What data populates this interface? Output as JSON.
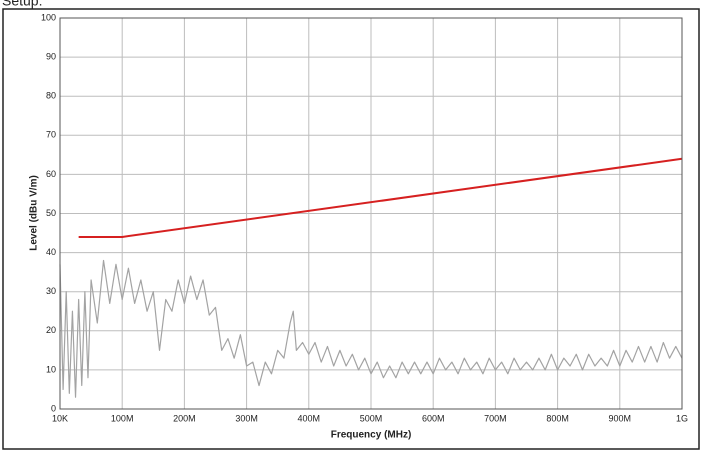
{
  "caption": "Setup:",
  "chart_data": {
    "type": "line",
    "x_label": "Frequency (MHz)",
    "y_label": "Level (dBu V/m)",
    "xlim": [
      0.01,
      1000
    ],
    "ylim": [
      0,
      100
    ],
    "xticks": [
      {
        "value": 0.01,
        "label": "10K"
      },
      {
        "value": 100,
        "label": "100M"
      },
      {
        "value": 200,
        "label": "200M"
      },
      {
        "value": 300,
        "label": "300M"
      },
      {
        "value": 400,
        "label": "400M"
      },
      {
        "value": 500,
        "label": "500M"
      },
      {
        "value": 600,
        "label": "600M"
      },
      {
        "value": 700,
        "label": "700M"
      },
      {
        "value": 800,
        "label": "800M"
      },
      {
        "value": 900,
        "label": "900M"
      },
      {
        "value": 1000,
        "label": "1G"
      }
    ],
    "yticks": [
      0,
      10,
      20,
      30,
      40,
      50,
      60,
      70,
      80,
      90,
      100
    ],
    "grid": true,
    "series": [
      {
        "color": "#a3a3a3",
        "x": [
          0.01,
          5,
          10,
          15,
          20,
          25,
          30,
          35,
          40,
          45,
          50,
          60,
          70,
          80,
          90,
          100,
          110,
          120,
          130,
          140,
          150,
          160,
          170,
          180,
          190,
          200,
          210,
          220,
          230,
          240,
          250,
          260,
          270,
          280,
          290,
          300,
          310,
          320,
          330,
          340,
          350,
          360,
          370,
          375,
          380,
          390,
          400,
          410,
          420,
          430,
          440,
          450,
          460,
          470,
          480,
          490,
          500,
          510,
          520,
          530,
          540,
          550,
          560,
          570,
          580,
          590,
          600,
          610,
          620,
          630,
          640,
          650,
          660,
          670,
          680,
          690,
          700,
          710,
          720,
          730,
          740,
          750,
          760,
          770,
          780,
          790,
          800,
          810,
          820,
          830,
          840,
          850,
          860,
          870,
          880,
          890,
          900,
          910,
          920,
          930,
          940,
          950,
          960,
          970,
          980,
          990,
          1000
        ],
        "values": [
          37,
          5,
          30,
          4,
          25,
          3,
          28,
          6,
          30,
          8,
          33,
          22,
          38,
          27,
          37,
          28,
          36,
          27,
          33,
          25,
          30,
          15,
          28,
          25,
          33,
          27,
          34,
          28,
          33,
          24,
          26,
          15,
          18,
          13,
          19,
          11,
          12,
          6,
          12,
          9,
          15,
          13,
          22,
          25,
          15,
          17,
          14,
          17,
          12,
          16,
          11,
          15,
          11,
          14,
          10,
          13,
          9,
          12,
          8,
          11,
          8,
          12,
          9,
          12,
          9,
          12,
          9,
          13,
          10,
          12,
          9,
          13,
          10,
          12,
          9,
          13,
          10,
          12,
          9,
          13,
          10,
          12,
          10,
          13,
          10,
          14,
          10,
          13,
          11,
          14,
          10,
          14,
          11,
          13,
          11,
          15,
          11,
          15,
          12,
          16,
          12,
          16,
          12,
          17,
          13,
          16,
          13
        ]
      },
      {
        "color": "#d62020",
        "x": [
          30,
          100,
          1000
        ],
        "values": [
          44,
          44,
          64
        ]
      }
    ]
  }
}
